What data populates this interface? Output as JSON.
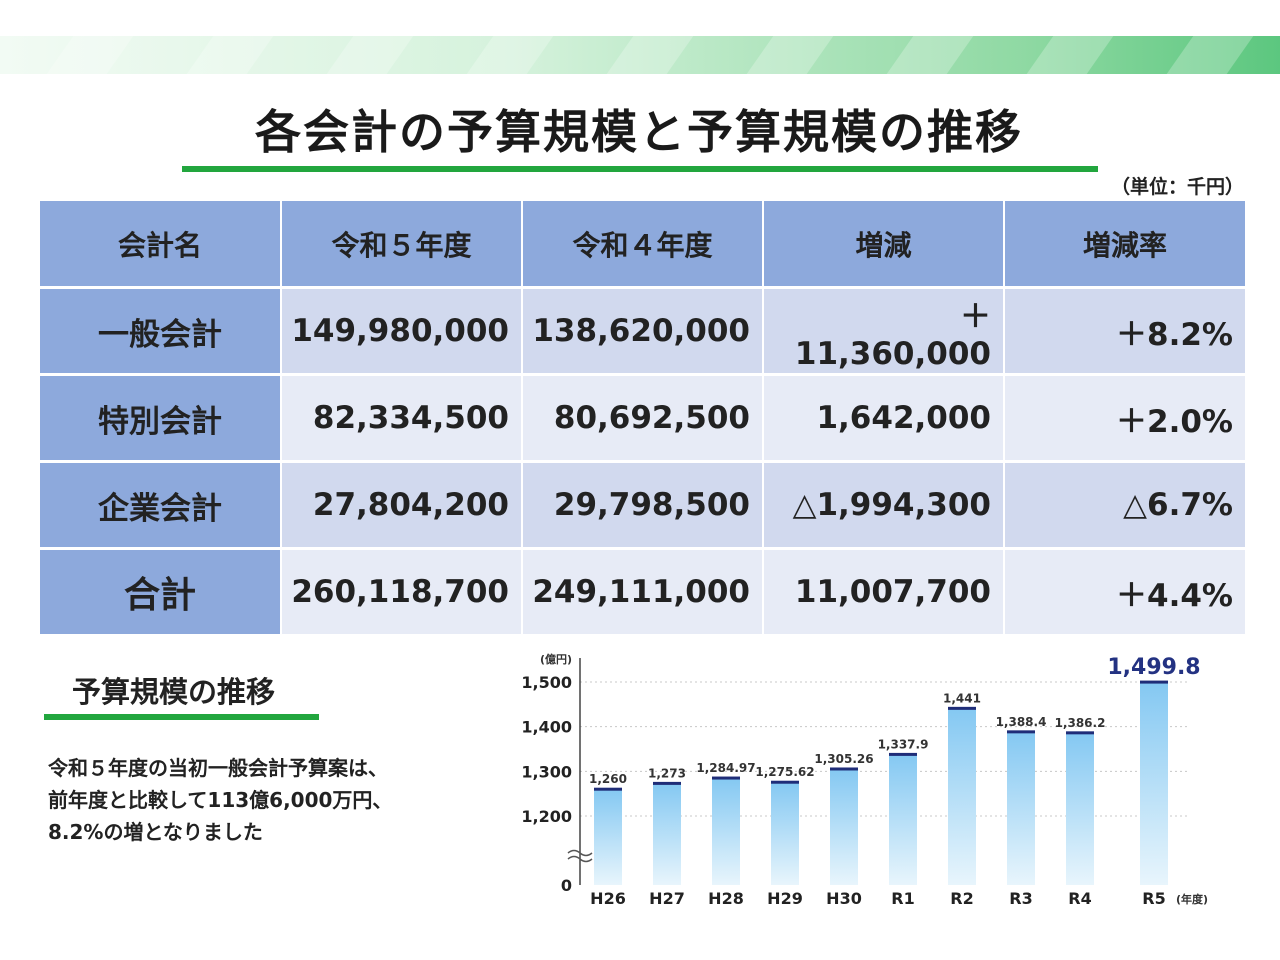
{
  "title": "各会計の予算規模と予算規模の推移",
  "unit_label": "（単位：千円）",
  "table": {
    "headers": [
      "会計名",
      "令和５年度",
      "令和４年度",
      "増減",
      "増減率"
    ],
    "rows": [
      {
        "name": "一般会計",
        "r5": "149,980,000",
        "r4": "138,620,000",
        "diff": "＋11,360,000",
        "rate": "＋8.2%"
      },
      {
        "name": "特別会計",
        "r5": "82,334,500",
        "r4": "80,692,500",
        "diff": "1,642,000",
        "rate": "＋2.0%"
      },
      {
        "name": "企業会計",
        "r5": "27,804,200",
        "r4": "29,798,500",
        "diff": "△1,994,300",
        "rate": "△6.7%"
      },
      {
        "name": "合計",
        "r5": "260,118,700",
        "r4": "249,111,000",
        "diff": "11,007,700",
        "rate": "＋4.4%"
      }
    ]
  },
  "section": {
    "title": "予算規模の推移",
    "desc_lines": [
      "令和５年度の当初一般会計予算案は、",
      "前年度と比較して113億6,000万円、",
      "8.2%の増となりました"
    ]
  },
  "chart_data": {
    "type": "bar",
    "title": "",
    "xlabel": "(年度)",
    "ylabel": "(億円)",
    "categories": [
      "H26",
      "H27",
      "H28",
      "H29",
      "H30",
      "R1",
      "R2",
      "R3",
      "R4",
      "R5"
    ],
    "values": [
      1260,
      1273,
      1284.97,
      1275.62,
      1305.26,
      1337.9,
      1441,
      1388.4,
      1386.2,
      1499.8
    ],
    "value_labels": [
      "1,260",
      "1,273",
      "1,284.97",
      "1,275.62",
      "1,305.26",
      "1,337.9",
      "1,441",
      "1,388.4",
      "1,386.2",
      "1,499.8"
    ],
    "y_ticks": [
      0,
      1200,
      1300,
      1400,
      1500
    ],
    "y_tick_labels": [
      "0",
      "1,200",
      "1,300",
      "1,400",
      "1,500"
    ],
    "axis_break": true,
    "ylim": [
      0,
      1500
    ],
    "grid": true,
    "highlight_index": 9,
    "colors": {
      "bar_top": "#84c8f2",
      "bar_bottom": "#e8f5fc",
      "cap": "#1f2d78",
      "highlight_label": "#233282",
      "grid": "#c8c8c8"
    }
  },
  "colors": {
    "header_bg": "#8da9dc",
    "accent_green": "#22a63e"
  }
}
